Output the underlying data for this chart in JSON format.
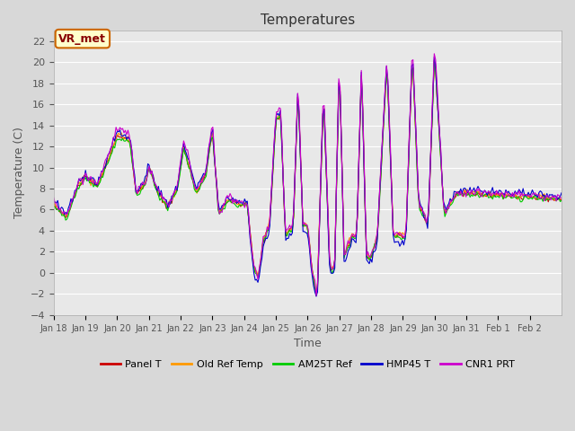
{
  "title": "Temperatures",
  "xlabel": "Time",
  "ylabel": "Temperature (C)",
  "ylim": [
    -4,
    23
  ],
  "yticks": [
    -4,
    -2,
    0,
    2,
    4,
    6,
    8,
    10,
    12,
    14,
    16,
    18,
    20,
    22
  ],
  "legend_labels": [
    "Panel T",
    "Old Ref Temp",
    "AM25T Ref",
    "HMP45 T",
    "CNR1 PRT"
  ],
  "legend_colors": [
    "#cc0000",
    "#ff9900",
    "#00cc00",
    "#0000cc",
    "#cc00cc"
  ],
  "annotation_text": "VR_met",
  "annotation_bg": "#ffffcc",
  "annotation_border": "#cc6600",
  "annotation_text_color": "#880000",
  "background_color": "#e8e8e8",
  "grid_color": "#ffffff",
  "n_days": 16,
  "tick_positions": [
    0,
    1,
    2,
    3,
    4,
    5,
    6,
    7,
    8,
    9,
    10,
    11,
    12,
    13,
    14,
    15
  ],
  "tick_labels": [
    "Jan 18",
    "Jan 19",
    "Jan 20",
    "Jan 21",
    "Jan 22",
    "Jan 23",
    "Jan 24",
    "Jan 25",
    "Jan 26",
    "Jan 27",
    "Jan 28",
    "Jan 29",
    "Jan 30",
    "Jan 31",
    "Feb 1",
    "Feb 2"
  ]
}
